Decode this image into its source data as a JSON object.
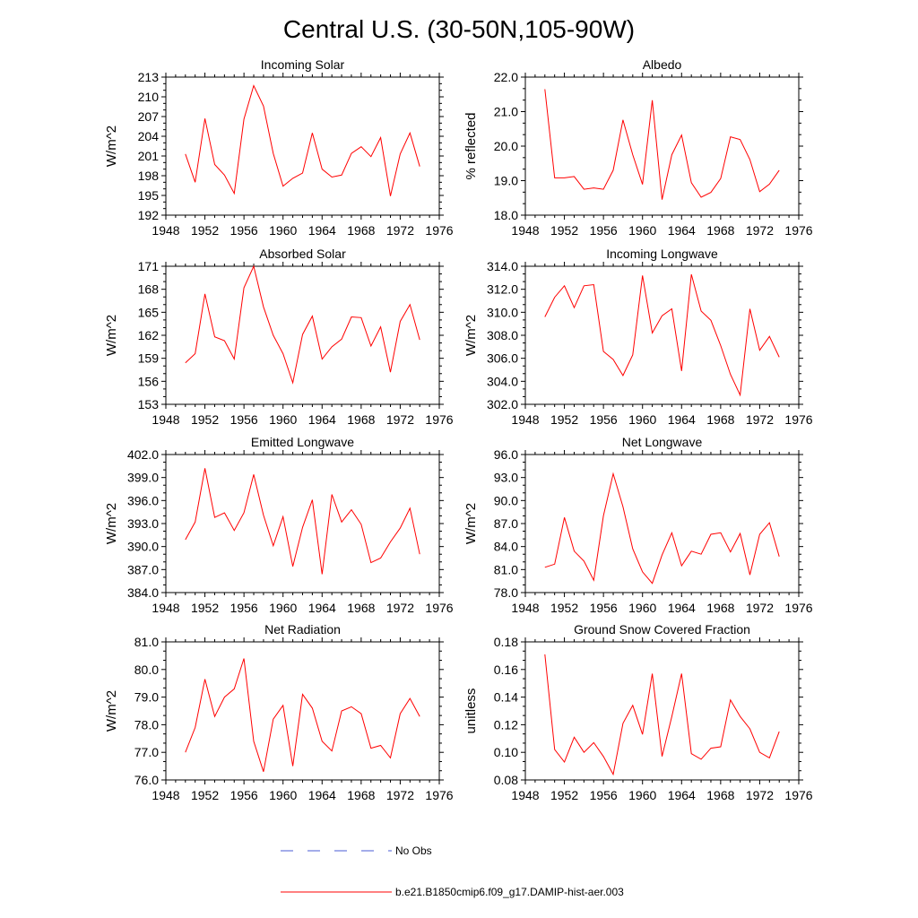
{
  "figure": {
    "title": "Central U.S. (30-50N,105-90W)",
    "legend": [
      {
        "label": "No Obs",
        "color": "#4a5bd4",
        "style": "dashed"
      },
      {
        "label": "b.e21.B1850cmip6.f09_g17.DAMIP-hist-aer.003",
        "color": "#ff0000",
        "style": "solid"
      }
    ]
  },
  "chart_data": [
    {
      "type": "line",
      "title": "Incoming Solar",
      "ylabel": "W/m^2",
      "xlim": [
        1948,
        1976
      ],
      "ylim": [
        192,
        213
      ],
      "xticks": [
        "1948",
        "1952",
        "1956",
        "1960",
        "1964",
        "1968",
        "1972",
        "1976"
      ],
      "yticks": [
        "192",
        "195",
        "198",
        "201",
        "204",
        "207",
        "210",
        "213"
      ],
      "x": [
        1950,
        1951,
        1952,
        1953,
        1954,
        1955,
        1956,
        1957,
        1958,
        1959,
        1960,
        1961,
        1962,
        1963,
        1964,
        1965,
        1966,
        1967,
        1968,
        1969,
        1970,
        1971,
        1972,
        1973,
        1974
      ],
      "series": [
        {
          "name": "b.e21.B1850cmip6.f09_g17.DAMIP-hist-aer.003",
          "color": "#ff0000",
          "values": [
            201.3,
            197.0,
            206.7,
            199.7,
            198.1,
            195.3,
            206.6,
            211.7,
            208.6,
            201.4,
            196.4,
            197.6,
            198.4,
            204.5,
            199.0,
            197.8,
            198.1,
            201.4,
            202.4,
            200.9,
            203.8,
            194.9,
            201.3,
            204.5,
            199.4
          ]
        }
      ]
    },
    {
      "type": "line",
      "title": "Albedo",
      "ylabel": "% reflected",
      "xlim": [
        1948,
        1976
      ],
      "ylim": [
        18.0,
        22.0
      ],
      "xticks": [
        "1948",
        "1952",
        "1956",
        "1960",
        "1964",
        "1968",
        "1972",
        "1976"
      ],
      "yticks": [
        "18.0",
        "19.0",
        "20.0",
        "21.0",
        "22.0"
      ],
      "x": [
        1950,
        1951,
        1952,
        1953,
        1954,
        1955,
        1956,
        1957,
        1958,
        1959,
        1960,
        1961,
        1962,
        1963,
        1964,
        1965,
        1966,
        1967,
        1968,
        1969,
        1970,
        1971,
        1972,
        1973,
        1974
      ],
      "series": [
        {
          "name": "b.e21.B1850cmip6.f09_g17.DAMIP-hist-aer.003",
          "color": "#ff0000",
          "values": [
            21.65,
            19.08,
            19.08,
            19.12,
            18.75,
            18.79,
            18.75,
            19.3,
            20.76,
            19.75,
            18.89,
            21.33,
            18.45,
            19.75,
            20.32,
            18.94,
            18.52,
            18.66,
            19.06,
            20.27,
            20.19,
            19.61,
            18.68,
            18.9,
            19.3
          ]
        }
      ]
    },
    {
      "type": "line",
      "title": "Absorbed Solar",
      "ylabel": "W/m^2",
      "xlim": [
        1948,
        1976
      ],
      "ylim": [
        153,
        171
      ],
      "xticks": [
        "1948",
        "1952",
        "1956",
        "1960",
        "1964",
        "1968",
        "1972",
        "1976"
      ],
      "yticks": [
        "153",
        "156",
        "159",
        "162",
        "165",
        "168",
        "171"
      ],
      "x": [
        1950,
        1951,
        1952,
        1953,
        1954,
        1955,
        1956,
        1957,
        1958,
        1959,
        1960,
        1961,
        1962,
        1963,
        1964,
        1965,
        1966,
        1967,
        1968,
        1969,
        1970,
        1971,
        1972,
        1973,
        1974
      ],
      "series": [
        {
          "name": "b.e21.B1850cmip6.f09_g17.DAMIP-hist-aer.003",
          "color": "#ff0000",
          "values": [
            158.4,
            159.6,
            167.4,
            161.8,
            161.3,
            158.9,
            168.2,
            171.0,
            165.7,
            162.0,
            159.6,
            155.8,
            162.1,
            164.5,
            158.9,
            160.5,
            161.5,
            164.4,
            164.3,
            160.6,
            163.1,
            157.2,
            163.8,
            166.0,
            161.4
          ]
        }
      ]
    },
    {
      "type": "line",
      "title": "Incoming Longwave",
      "ylabel": "W/m^2",
      "xlim": [
        1948,
        1976
      ],
      "ylim": [
        302.0,
        314.0
      ],
      "xticks": [
        "1948",
        "1952",
        "1956",
        "1960",
        "1964",
        "1968",
        "1972",
        "1976"
      ],
      "yticks": [
        "302.0",
        "304.0",
        "306.0",
        "308.0",
        "310.0",
        "312.0",
        "314.0"
      ],
      "x": [
        1950,
        1951,
        1952,
        1953,
        1954,
        1955,
        1956,
        1957,
        1958,
        1959,
        1960,
        1961,
        1962,
        1963,
        1964,
        1965,
        1966,
        1967,
        1968,
        1969,
        1970,
        1971,
        1972,
        1973,
        1974
      ],
      "series": [
        {
          "name": "b.e21.B1850cmip6.f09_g17.DAMIP-hist-aer.003",
          "color": "#ff0000",
          "values": [
            309.6,
            311.3,
            312.3,
            310.4,
            312.3,
            312.4,
            306.6,
            305.9,
            304.5,
            306.3,
            313.2,
            308.2,
            309.7,
            310.3,
            304.9,
            313.3,
            310.1,
            309.3,
            307.1,
            304.6,
            302.8,
            310.3,
            306.7,
            307.9,
            306.1
          ]
        }
      ]
    },
    {
      "type": "line",
      "title": "Emitted Longwave",
      "ylabel": "W/m^2",
      "xlim": [
        1948,
        1976
      ],
      "ylim": [
        384.0,
        402.0
      ],
      "xticks": [
        "1948",
        "1952",
        "1956",
        "1960",
        "1964",
        "1968",
        "1972",
        "1976"
      ],
      "yticks": [
        "384.0",
        "387.0",
        "390.0",
        "393.0",
        "396.0",
        "399.0",
        "402.0"
      ],
      "x": [
        1950,
        1951,
        1952,
        1953,
        1954,
        1955,
        1956,
        1957,
        1958,
        1959,
        1960,
        1961,
        1962,
        1963,
        1964,
        1965,
        1966,
        1967,
        1968,
        1969,
        1970,
        1971,
        1972,
        1973,
        1974
      ],
      "series": [
        {
          "name": "b.e21.B1850cmip6.f09_g17.DAMIP-hist-aer.003",
          "color": "#ff0000",
          "values": [
            390.9,
            393.2,
            400.2,
            393.8,
            394.4,
            392.1,
            394.4,
            399.4,
            394.1,
            390.1,
            393.9,
            387.4,
            392.5,
            396.1,
            386.4,
            396.8,
            393.2,
            394.8,
            392.9,
            387.9,
            388.5,
            390.6,
            392.4,
            395.0,
            389.0
          ]
        }
      ]
    },
    {
      "type": "line",
      "title": "Net Longwave",
      "ylabel": "W/m^2",
      "xlim": [
        1948,
        1976
      ],
      "ylim": [
        78.0,
        96.0
      ],
      "xticks": [
        "1948",
        "1952",
        "1956",
        "1960",
        "1964",
        "1968",
        "1972",
        "1976"
      ],
      "yticks": [
        "78.0",
        "81.0",
        "84.0",
        "87.0",
        "90.0",
        "93.0",
        "96.0"
      ],
      "x": [
        1950,
        1951,
        1952,
        1953,
        1954,
        1955,
        1956,
        1957,
        1958,
        1959,
        1960,
        1961,
        1962,
        1963,
        1964,
        1965,
        1966,
        1967,
        1968,
        1969,
        1970,
        1971,
        1972,
        1973,
        1974
      ],
      "series": [
        {
          "name": "b.e21.B1850cmip6.f09_g17.DAMIP-hist-aer.003",
          "color": "#ff0000",
          "values": [
            81.3,
            81.7,
            87.8,
            83.4,
            82.1,
            79.6,
            88.0,
            93.5,
            89.2,
            83.7,
            80.7,
            79.2,
            82.9,
            85.8,
            81.5,
            83.4,
            83.0,
            85.6,
            85.8,
            83.3,
            85.7,
            80.3,
            85.6,
            87.1,
            82.7
          ]
        }
      ]
    },
    {
      "type": "line",
      "title": "Net Radiation",
      "ylabel": "W/m^2",
      "xlim": [
        1948,
        1976
      ],
      "ylim": [
        76.0,
        81.0
      ],
      "xticks": [
        "1948",
        "1952",
        "1956",
        "1960",
        "1964",
        "1968",
        "1972",
        "1976"
      ],
      "yticks": [
        "76.0",
        "77.0",
        "78.0",
        "79.0",
        "80.0",
        "81.0"
      ],
      "x": [
        1950,
        1951,
        1952,
        1953,
        1954,
        1955,
        1956,
        1957,
        1958,
        1959,
        1960,
        1961,
        1962,
        1963,
        1964,
        1965,
        1966,
        1967,
        1968,
        1969,
        1970,
        1971,
        1972,
        1973,
        1974
      ],
      "series": [
        {
          "name": "b.e21.B1850cmip6.f09_g17.DAMIP-hist-aer.003",
          "color": "#ff0000",
          "values": [
            77.0,
            77.9,
            79.65,
            78.3,
            79.0,
            79.3,
            80.4,
            77.4,
            76.3,
            78.2,
            78.7,
            76.5,
            79.1,
            78.6,
            77.4,
            77.05,
            78.5,
            78.65,
            78.4,
            77.15,
            77.25,
            76.8,
            78.4,
            78.95,
            78.3
          ]
        }
      ]
    },
    {
      "type": "line",
      "title": "Ground Snow Covered Fraction",
      "ylabel": "unitless",
      "xlim": [
        1948,
        1976
      ],
      "ylim": [
        0.08,
        0.18
      ],
      "xticks": [
        "1948",
        "1952",
        "1956",
        "1960",
        "1964",
        "1968",
        "1972",
        "1976"
      ],
      "yticks": [
        "0.08",
        "0.10",
        "0.12",
        "0.14",
        "0.16",
        "0.18"
      ],
      "x": [
        1950,
        1951,
        1952,
        1953,
        1954,
        1955,
        1956,
        1957,
        1958,
        1959,
        1960,
        1961,
        1962,
        1963,
        1964,
        1965,
        1966,
        1967,
        1968,
        1969,
        1970,
        1971,
        1972,
        1973,
        1974
      ],
      "series": [
        {
          "name": "b.e21.B1850cmip6.f09_g17.DAMIP-hist-aer.003",
          "color": "#ff0000",
          "values": [
            0.171,
            0.102,
            0.093,
            0.111,
            0.1,
            0.107,
            0.097,
            0.084,
            0.121,
            0.134,
            0.113,
            0.157,
            0.097,
            0.126,
            0.157,
            0.099,
            0.095,
            0.103,
            0.104,
            0.138,
            0.126,
            0.117,
            0.1,
            0.096,
            0.115
          ]
        }
      ]
    }
  ]
}
